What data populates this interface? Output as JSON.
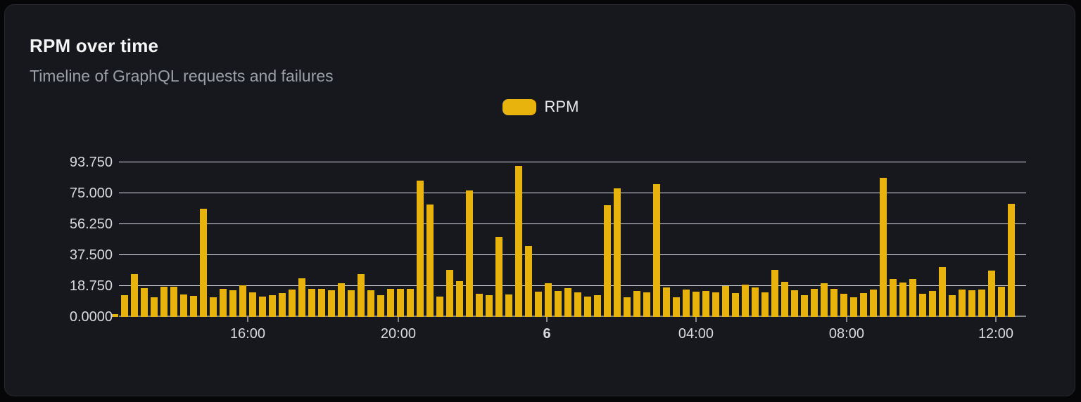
{
  "card": {
    "title": "RPM over time",
    "subtitle": "Timeline of GraphQL requests and failures"
  },
  "legend": {
    "items": [
      {
        "label": "RPM",
        "color": "#e9b30d"
      }
    ]
  },
  "chart_data": {
    "type": "bar",
    "title": "RPM over time",
    "subtitle": "Timeline of GraphQL requests and failures",
    "series_name": "RPM",
    "legend_position": "top-center",
    "grid": true,
    "bar_color": "#e9b30d",
    "grid_color": "#dcdfe7",
    "axis_color": "#85868c",
    "label_color": "#d9dadf",
    "ylim": [
      0,
      96.7
    ],
    "ylabel": "",
    "xlabel": "",
    "y_ticks": [
      {
        "label": "0.0000",
        "value": 0
      },
      {
        "label": "18.750",
        "value": 18.75
      },
      {
        "label": "37.500",
        "value": 37.5
      },
      {
        "label": "56.250",
        "value": 56.25
      },
      {
        "label": "75.000",
        "value": 75
      },
      {
        "label": "93.750",
        "value": 93.75
      }
    ],
    "x_ticks": [
      {
        "label": "16:00",
        "pos": 0.1492,
        "bold": false
      },
      {
        "label": "20:00",
        "pos": 0.3138,
        "bold": false
      },
      {
        "label": "6",
        "pos": 0.4762,
        "bold": true
      },
      {
        "label": "04:00",
        "pos": 0.6392,
        "bold": false
      },
      {
        "label": "08:00",
        "pos": 0.8038,
        "bold": false
      },
      {
        "label": "12:00",
        "pos": 0.9669,
        "bold": false
      }
    ],
    "values": [
      1.5,
      13.2,
      26.1,
      17.5,
      11.8,
      18.2,
      18.2,
      13.7,
      12.8,
      65.8,
      12.1,
      17.2,
      16.2,
      19.1,
      15.1,
      12.5,
      13.0,
      14.4,
      16.5,
      23.6,
      16.9,
      17.2,
      16.2,
      20.5,
      16.1,
      25.8,
      16.2,
      13.0,
      16.9,
      17.2,
      17.2,
      82.5,
      68.0,
      12.2,
      28.6,
      21.8,
      76.8,
      14.1,
      13.4,
      48.7,
      13.7,
      91.8,
      43.2,
      15.4,
      20.4,
      15.8,
      17.5,
      15.0,
      12.4,
      13.0,
      67.7,
      77.9,
      11.8,
      15.8,
      15.0,
      80.5,
      17.8,
      11.8,
      16.8,
      15.4,
      15.8,
      15.0,
      18.6,
      14.4,
      19.5,
      17.8,
      15.0,
      28.6,
      21.5,
      16.1,
      13.4,
      17.1,
      20.6,
      16.9,
      14.1,
      12.0,
      14.4,
      16.8,
      84.2,
      22.8,
      20.9,
      22.8,
      14.2,
      15.6,
      30.2,
      13.0,
      16.8,
      16.1,
      16.8,
      28.0,
      18.5,
      68.4
    ]
  }
}
